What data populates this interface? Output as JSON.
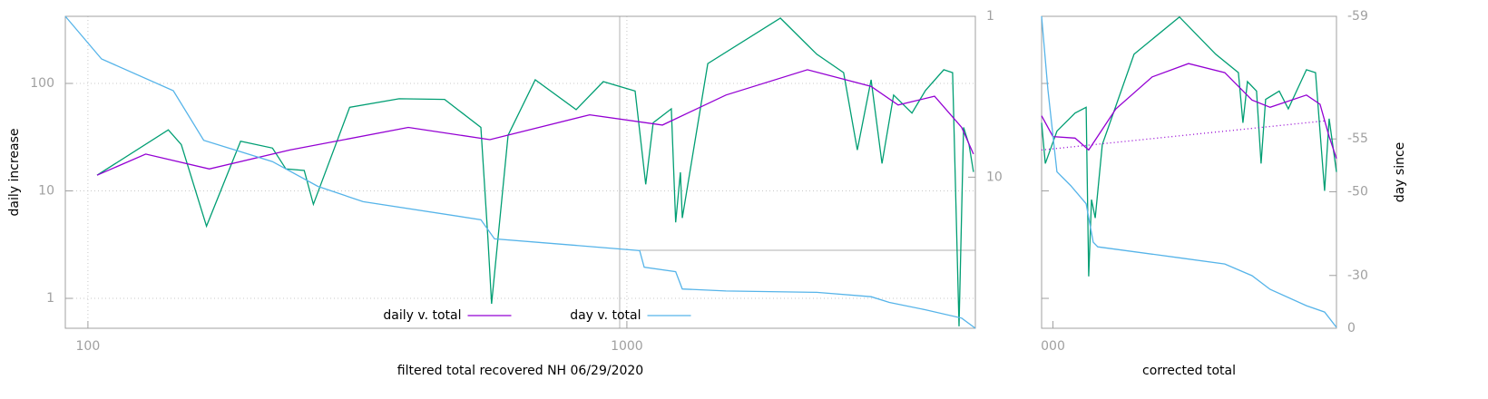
{
  "chart_data": [
    {
      "type": "line",
      "xlabel": "filtered total recovered NH 06/29/2020",
      "ylabel": "daily increase",
      "xscale": "log",
      "yscale": "log",
      "y2scale": "log",
      "y2_inverted": true,
      "xlim": [
        90.8,
        4432
      ],
      "ylim": [
        0.527,
        421
      ],
      "y2lim": [
        1,
        87
      ],
      "xticks": [
        100,
        1000
      ],
      "yticks": [
        1,
        10,
        100
      ],
      "y2ticks": [
        1,
        10
      ],
      "grid": true,
      "legend": "bottom center",
      "series": [
        {
          "color": "#009e73",
          "x": [
            104,
            141,
            149,
            166,
            192,
            220,
            233,
            252,
            262,
            306,
            378,
            459,
            536,
            552,
            561,
            602,
            676,
            805,
            904,
            1036,
            1084,
            1119,
            1209,
            1232,
            1257,
            1267,
            1413,
            1927,
            2251,
            2524,
            2677,
            2839,
            2974,
            3126,
            3380,
            3581,
            3872,
            4021,
            4133,
            4215,
            4313,
            4396
          ],
          "values": [
            14,
            37,
            27,
            4.7,
            29,
            25,
            16,
            15.5,
            7.5,
            60,
            72,
            71,
            39,
            3.8,
            0.89,
            33,
            108,
            57,
            104,
            85,
            11.5,
            43,
            58,
            5.1,
            14.9,
            5.6,
            153,
            405,
            187,
            126,
            24,
            108,
            18,
            78,
            53,
            86,
            134,
            126,
            0.55,
            39,
            27,
            15
          ]
        },
        {
          "name": "daily v. total",
          "color": "#9400d3",
          "x": [
            104,
            128,
            168,
            237,
            393,
            557,
            853,
            1164,
            1527,
            2163,
            2838,
            3187,
            3722,
            4180,
            4396
          ],
          "values": [
            14,
            22,
            16,
            24,
            39,
            30,
            51,
            41,
            78,
            134,
            94,
            63,
            76,
            39,
            22
          ]
        },
        {
          "name": "day v. total",
          "color": "#56b4e9",
          "axis": "y2",
          "x": [
            90.8,
            106,
            144,
            164,
            220,
            267,
            324,
            536,
            568,
            703,
            1056,
            1077,
            1232,
            1267,
            1527,
            2251,
            2839,
            3069,
            3581,
            4180,
            4432
          ],
          "values": [
            1.0,
            1.84,
            2.9,
            5.9,
            8.0,
            11.4,
            14.2,
            18.4,
            24.2,
            25.6,
            28.6,
            36.3,
            38.7,
            49.6,
            51,
            52,
            55.4,
            60.1,
            66.8,
            75.2,
            87
          ]
        }
      ]
    },
    {
      "type": "line",
      "xlabel": "corrected total",
      "y2label": "day since",
      "xscale": "linear",
      "yscale": "log",
      "y2scale": "log",
      "y2_offset": 60,
      "y2_inverted": true,
      "xlim": [
        -4,
        100
      ],
      "ylim": [
        0.527,
        421
      ],
      "y2lim": [
        -59,
        0
      ],
      "xticks": [
        {
          "value": 0,
          "label": "000"
        }
      ],
      "yticks": [
        1,
        10,
        100
      ],
      "ytick_labels": false,
      "y2ticks": [
        -59,
        -55,
        -50,
        -30,
        0
      ],
      "series": [
        {
          "color": "#009e73",
          "x": [
            -4,
            -2.7,
            1.4,
            7.8,
            11.7,
            12.6,
            13.6,
            14.9,
            17.4,
            28.6,
            44.6,
            57.4,
            65.4,
            67,
            68.6,
            71.8,
            73.4,
            75,
            79.8,
            83,
            89.4,
            92.6,
            95.8,
            97.4,
            100
          ],
          "values": [
            43,
            18,
            36,
            53,
            60,
            1.6,
            8.3,
            5.6,
            27,
            187,
            415,
            187,
            126,
            43,
            104,
            85,
            18,
            71,
            85,
            58,
            134,
            126,
            10,
            47,
            15
          ]
        },
        {
          "color": "#9400d3",
          "x": [
            -4,
            0,
            7.8,
            12.6,
            22.2,
            35,
            47.8,
            60.6,
            70.2,
            76.6,
            89.4,
            94.2,
            97.4,
            100
          ],
          "values": [
            50,
            32,
            31,
            24,
            58,
            115,
            153,
            126,
            70,
            60,
            78,
            64,
            32,
            20
          ]
        },
        {
          "color": "#9400d3",
          "dash": "dotted",
          "x": [
            -4,
            96.5
          ],
          "values": [
            24,
            45
          ]
        },
        {
          "color": "#56b4e9",
          "axis": "y2",
          "x": [
            -4,
            -1.8,
            1.4,
            6.2,
            11.7,
            14.2,
            15.8,
            44.6,
            60.6,
            70.2,
            76.6,
            89.4,
            95.8,
            100
          ],
          "values": [
            -59.0,
            -57.4,
            -52.3,
            -50.8,
            -48.3,
            -40.6,
            -39.4,
            -36.2,
            -34.2,
            -29.9,
            -24,
            -15.4,
            -11.5,
            -0.7
          ]
        }
      ]
    }
  ]
}
